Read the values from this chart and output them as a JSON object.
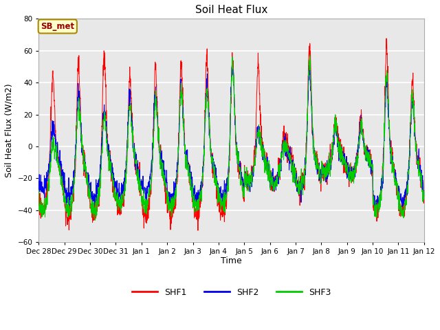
{
  "title": "Soil Heat Flux",
  "xlabel": "Time",
  "ylabel": "Soil Heat Flux (W/m2)",
  "ylim": [
    -60,
    80
  ],
  "yticks": [
    -60,
    -40,
    -20,
    0,
    20,
    40,
    60,
    80
  ],
  "colors": {
    "SHF1": "#ff0000",
    "SHF2": "#0000ee",
    "SHF3": "#00cc00"
  },
  "annotation_text": "SB_met",
  "annotation_color": "#990000",
  "annotation_bg": "#ffffcc",
  "annotation_edge": "#aa8800",
  "fig_bg": "#ffffff",
  "plot_bg": "#e8e8e8",
  "grid_color": "#ffffff",
  "tick_labels": [
    "Dec 28",
    "Dec 29",
    "Dec 30",
    "Dec 31",
    "Jan 1",
    "Jan 2",
    "Jan 3",
    "Jan 4",
    "Jan 5",
    "Jan 6",
    "Jan 7",
    "Jan 8",
    "Jan 9",
    "Jan 10",
    "Jan 11",
    "Jan 12"
  ],
  "n_days": 15,
  "ppd": 144,
  "phase_peak": 0.54,
  "phase_trough": 0.15
}
